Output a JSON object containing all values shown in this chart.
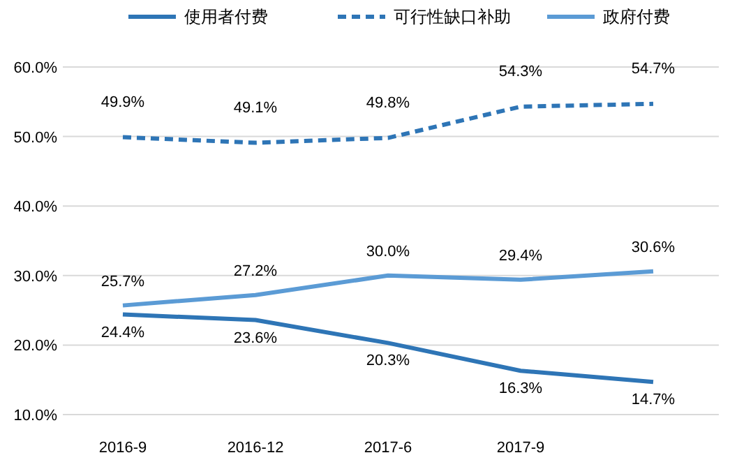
{
  "chart_data": {
    "type": "line",
    "categories": [
      "2016-9",
      "2016-12",
      "2017-6",
      "2017-9",
      null
    ],
    "series": [
      {
        "name": "使用者付费",
        "color": "#2e75b6",
        "values": [
          24.4,
          23.6,
          20.3,
          16.3,
          14.7
        ],
        "value_labels": [
          "24.4%",
          "23.6%",
          "20.3%",
          "16.3%",
          "14.7%"
        ],
        "line_style": "solid"
      },
      {
        "name": "可行性缺口补助",
        "color": "#2e75b6",
        "values": [
          49.9,
          49.1,
          49.8,
          54.3,
          54.7
        ],
        "value_labels": [
          "49.9%",
          "49.1%",
          "49.8%",
          "54.3%",
          "54.7%"
        ],
        "line_style": "dashed"
      },
      {
        "name": "政府付费",
        "color": "#5b9bd5",
        "values": [
          25.7,
          27.2,
          30.0,
          29.4,
          30.6
        ],
        "value_labels": [
          "25.7%",
          "27.2%",
          "30.0%",
          "29.4%",
          "30.6%"
        ],
        "line_style": "solid"
      }
    ],
    "ylim": [
      10,
      60
    ],
    "yticks": [
      {
        "value": 10,
        "label": "10.0%"
      },
      {
        "value": 20,
        "label": "20.0%"
      },
      {
        "value": 30,
        "label": "30.0%"
      },
      {
        "value": 40,
        "label": "40.0%"
      },
      {
        "value": 50,
        "label": "50.0%"
      },
      {
        "value": 60,
        "label": "60.0%"
      }
    ],
    "grid": "y",
    "legend": "top",
    "marker": "none"
  }
}
